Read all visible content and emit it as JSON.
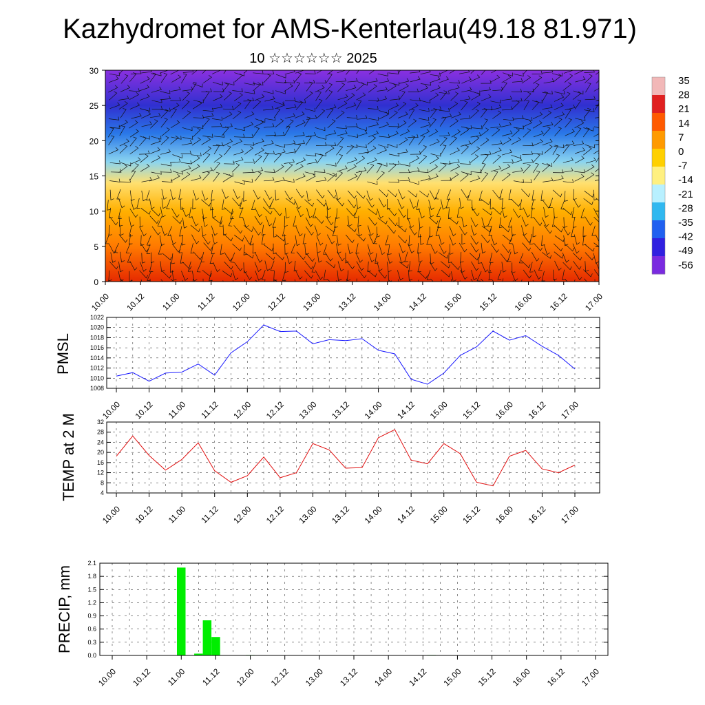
{
  "header": {
    "title": "Kazhydromet for AMS-Kenterlau(49.18 81.971)",
    "subtitle": "10 ☆☆☆☆☆☆ 2025"
  },
  "time_ticks": [
    "10.00",
    "10.12",
    "11.00",
    "11.12",
    "12.00",
    "12.12",
    "13.00",
    "13.12",
    "14.00",
    "14.12",
    "15.00",
    "15.12",
    "16.00",
    "16.12",
    "17.00"
  ],
  "chart_data": [
    {
      "type": "heatmap",
      "title": "",
      "variable": "temperature cross-section with wind barbs",
      "x": "time (10.00 to 17.00, 12-hourly ticks)",
      "ylim": [
        0,
        30
      ],
      "yticks": [
        0,
        5,
        10,
        15,
        20,
        25,
        30
      ],
      "colorbar_labels": [
        "35",
        "28",
        "21",
        "14",
        "7",
        "0",
        "-7",
        "-14",
        "-21",
        "-28",
        "-35",
        "-42",
        "-49",
        "-56"
      ],
      "colorbar_colors": [
        "#f2b8b8",
        "#e02020",
        "#ff5a00",
        "#ff9a00",
        "#ffd000",
        "#fff080",
        "#b8f0ff",
        "#30b8f0",
        "#2060f0",
        "#3020e0",
        "#7a2ae0"
      ],
      "colors": {
        "bands_by_level": [
          {
            "level": 0,
            "color": "#e62a00"
          },
          {
            "level": 5,
            "color": "#ff7a00"
          },
          {
            "level": 10,
            "color": "#ffb000"
          },
          {
            "level": 14,
            "color": "#ffe070"
          },
          {
            "level": 17,
            "color": "#8ad4f0"
          },
          {
            "level": 21,
            "color": "#2a78e8"
          },
          {
            "level": 25,
            "color": "#3030d0"
          },
          {
            "level": 30,
            "color": "#8a30e0"
          }
        ]
      }
    },
    {
      "type": "line",
      "ylabel": "PMSL",
      "ylim": [
        1008,
        1022
      ],
      "yticks": [
        1008,
        1010,
        1012,
        1014,
        1016,
        1018,
        1020,
        1022
      ],
      "color": "#1a1aff",
      "x_hours": [
        0,
        6,
        12,
        18,
        24,
        30,
        36,
        42,
        48,
        54,
        60,
        66,
        72,
        78,
        84,
        90,
        96,
        102,
        108,
        114,
        120,
        126,
        132,
        138,
        144,
        150,
        156,
        162,
        168
      ],
      "series": [
        {
          "values": [
            1010.4,
            1011.1,
            1009.4,
            1011.0,
            1011.2,
            1012.8,
            1010.6,
            1015.0,
            1017.2,
            1020.5,
            1019.2,
            1019.3,
            1016.8,
            1017.6,
            1017.4,
            1017.8,
            1015.5,
            1014.8,
            1009.8,
            1008.8,
            1011.0,
            1014.5,
            1016.2,
            1019.3,
            1017.5,
            1018.4,
            1016.3,
            1014.5,
            1011.8
          ]
        }
      ]
    },
    {
      "type": "line",
      "ylabel": "TEMP at 2 M",
      "ylim": [
        4,
        32
      ],
      "yticks": [
        4,
        8,
        12,
        16,
        20,
        24,
        28,
        32
      ],
      "color": "#e01010",
      "x_hours": [
        0,
        6,
        12,
        18,
        24,
        30,
        36,
        42,
        48,
        54,
        60,
        66,
        72,
        78,
        84,
        90,
        96,
        102,
        108,
        114,
        120,
        126,
        132,
        138,
        144,
        150,
        156,
        162,
        168
      ],
      "series": [
        {
          "values": [
            18.5,
            26.5,
            18.8,
            13.0,
            17.2,
            23.8,
            12.8,
            8.2,
            10.8,
            18.2,
            10.0,
            12.0,
            23.5,
            21.0,
            13.8,
            14.0,
            25.8,
            29.0,
            17.0,
            15.5,
            23.5,
            19.5,
            8.2,
            6.8,
            18.5,
            20.8,
            13.5,
            12.0,
            15.0
          ]
        }
      ]
    },
    {
      "type": "bar",
      "ylabel": "PRECIP, mm",
      "ylim": [
        0,
        2.1
      ],
      "yticks": [
        "0.0",
        "0.3",
        "0.6",
        "0.9",
        "1.2",
        "1.5",
        "1.8",
        "2.1"
      ],
      "color": "#00ee00",
      "x_hours": [
        24,
        30,
        33,
        36,
        48,
        111
      ],
      "series": [
        {
          "values": [
            2.0,
            0.04,
            0.8,
            0.42,
            0.01,
            0.01
          ]
        }
      ]
    }
  ]
}
